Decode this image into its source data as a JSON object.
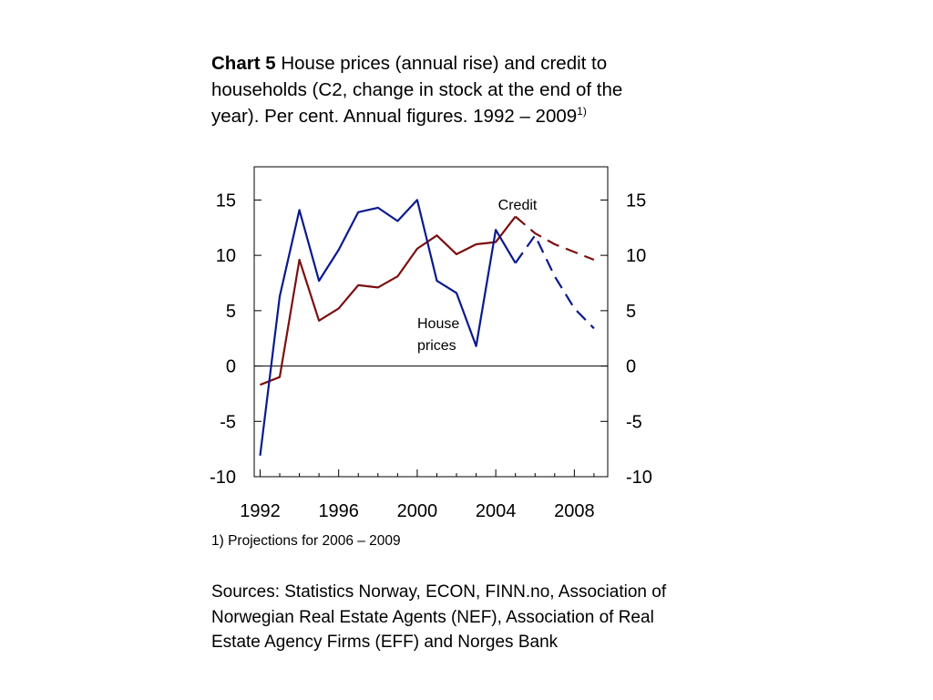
{
  "title": {
    "prefix": "Chart 5",
    "text": "House prices (annual rise) and credit to households (C2, change in stock at the end of the year). Per cent. Annual figures. 1992 – 2009",
    "superscript": "1)"
  },
  "footnote": "1) Projections for 2006 – 2009",
  "sources": "Sources: Statistics Norway, ECON, FINN.no, Association of Norwegian Real Estate Agents (NEF), Association of Real Estate Agency Firms (EFF) and Norges Bank",
  "chart_data": {
    "type": "line",
    "xlim": [
      1991.7,
      2009.7
    ],
    "ylim": [
      -10,
      18
    ],
    "x_ticks": [
      1992,
      1996,
      2000,
      2004,
      2008
    ],
    "y_ticks": [
      -10,
      -5,
      0,
      5,
      10,
      15
    ],
    "projection_start": 2006,
    "grid": false,
    "series": [
      {
        "name": "Credit",
        "color": "#7a1010",
        "x": [
          1992,
          1993,
          1994,
          1995,
          1996,
          1997,
          1998,
          1999,
          2000,
          2001,
          2002,
          2003,
          2004,
          2005,
          2006,
          2007,
          2008,
          2009
        ],
        "values": [
          -1.7,
          -1.0,
          9.6,
          4.1,
          5.2,
          7.3,
          7.1,
          8.1,
          10.6,
          11.8,
          10.1,
          11.0,
          11.2,
          13.5,
          12.0,
          11.0,
          10.3,
          9.6
        ]
      },
      {
        "name": "House prices",
        "color": "#0a1a8c",
        "x": [
          1992,
          1993,
          1994,
          1995,
          1996,
          1997,
          1998,
          1999,
          2000,
          2001,
          2002,
          2003,
          2004,
          2005,
          2006,
          2007,
          2008,
          2009
        ],
        "values": [
          -8.1,
          6.3,
          14.1,
          7.7,
          10.5,
          13.9,
          14.3,
          13.1,
          15.0,
          7.7,
          6.6,
          1.8,
          12.3,
          9.3,
          11.8,
          8.1,
          5.2,
          3.4
        ]
      }
    ],
    "annotations": {
      "credit": "Credit",
      "house_line1": "House",
      "house_line2": "prices"
    }
  }
}
